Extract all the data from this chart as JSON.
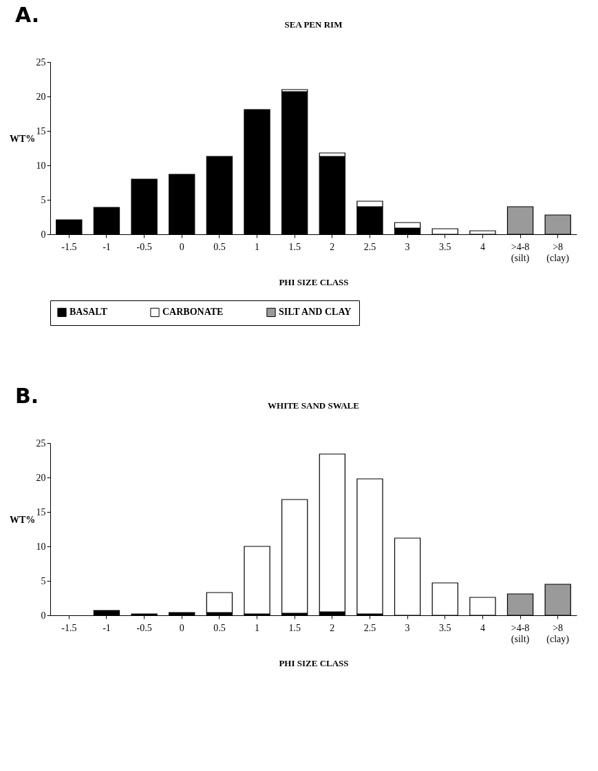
{
  "chart_data": [
    {
      "type": "bar",
      "stacked": true,
      "title": "SEA PEN RIM",
      "xlabel": "PHI SIZE CLASS",
      "ylabel": "WT%",
      "annotations": [
        "A."
      ],
      "categories": [
        "-1.5",
        "-1",
        "-0.5",
        "0",
        "0.5",
        "1",
        "1.5",
        "2",
        "2.5",
        "3",
        "3.5",
        "4",
        ">4-8\n(silt)",
        ">8\n(clay)"
      ],
      "series": [
        {
          "name": "BASALT",
          "color": "#000000",
          "values": [
            2.1,
            3.9,
            8.0,
            8.7,
            11.3,
            18.1,
            20.7,
            11.3,
            4.0,
            0.9,
            null,
            null,
            null,
            null
          ]
        },
        {
          "name": "CARBONATE",
          "color": "#ffffff",
          "values": [
            null,
            null,
            null,
            null,
            null,
            null,
            0.3,
            0.5,
            0.8,
            0.8,
            0.8,
            0.5,
            null,
            null
          ]
        },
        {
          "name": "SILT AND CLAY",
          "color": "#9a9a9a",
          "values": [
            null,
            null,
            null,
            null,
            null,
            null,
            null,
            null,
            null,
            null,
            null,
            null,
            4.0,
            2.8
          ]
        }
      ],
      "ylim": [
        0,
        25
      ],
      "yticks": [
        0,
        5,
        10,
        15,
        20,
        25
      ],
      "legend": "bottom"
    },
    {
      "type": "bar",
      "stacked": true,
      "title": "WHITE SAND SWALE",
      "xlabel": "PHI SIZE CLASS",
      "ylabel": "WT%",
      "annotations": [
        "B."
      ],
      "categories": [
        "-1.5",
        "-1",
        "-0.5",
        "0",
        "0.5",
        "1",
        "1.5",
        "2",
        "2.5",
        "3",
        "3.5",
        "4",
        ">4-8\n(silt)",
        ">8\n(clay)"
      ],
      "series": [
        {
          "color": "#000000",
          "values": [
            null,
            0.7,
            0.2,
            0.4,
            0.4,
            0.2,
            0.3,
            0.5,
            0.2,
            null,
            null,
            null,
            null,
            null
          ]
        },
        {
          "color": "#ffffff",
          "values": [
            null,
            null,
            null,
            null,
            2.9,
            9.8,
            16.5,
            22.9,
            19.6,
            11.2,
            4.7,
            2.6,
            null,
            null
          ]
        },
        {
          "color": "#9a9a9a",
          "values": [
            null,
            null,
            null,
            null,
            null,
            null,
            null,
            null,
            null,
            null,
            null,
            null,
            3.1,
            4.5
          ]
        }
      ],
      "ylim": [
        0,
        25
      ],
      "yticks": [
        0,
        5,
        10,
        15,
        20,
        25
      ]
    }
  ]
}
